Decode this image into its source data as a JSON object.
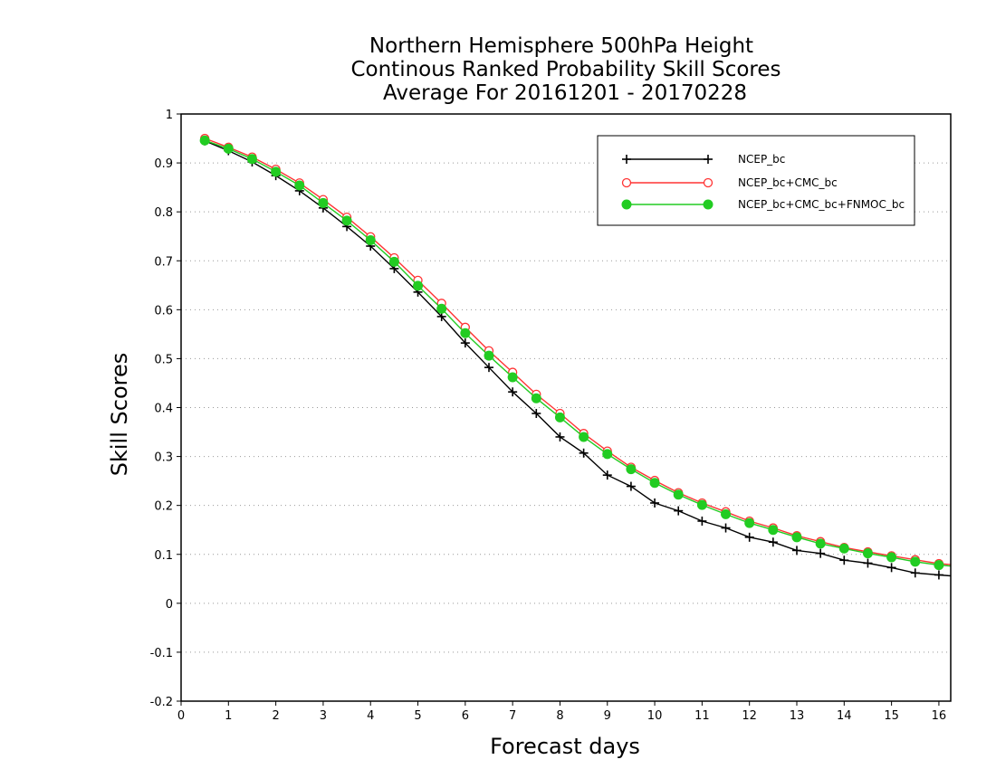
{
  "chart_data": {
    "type": "line",
    "title": [
      "Northern Hemisphere 500hPa Height",
      "Continous Ranked Probability Skill Scores",
      "Average For 20161201 - 20170228"
    ],
    "xlabel": "Forecast days",
    "ylabel": "Skill Scores",
    "xlim": [
      0,
      16.25
    ],
    "ylim": [
      -0.2,
      1.0
    ],
    "xticks": [
      "0",
      "1",
      "2",
      "3",
      "4",
      "5",
      "6",
      "7",
      "8",
      "9",
      "10",
      "11",
      "12",
      "13",
      "14",
      "15",
      "16"
    ],
    "yticks": [
      "-0.2",
      "-0.1",
      "0",
      "0.1",
      "0.2",
      "0.3",
      "0.4",
      "0.5",
      "0.6",
      "0.7",
      "0.8",
      "0.9",
      "1"
    ],
    "grid": "horizontal dotted",
    "legend_position": "top-right",
    "x": [
      0.5,
      1,
      1.5,
      2,
      2.5,
      3,
      3.5,
      4,
      4.5,
      5,
      5.5,
      6,
      6.5,
      7,
      7.5,
      8,
      8.5,
      9,
      9.5,
      10,
      10.5,
      11,
      11.5,
      12,
      12.5,
      13,
      13.5,
      14,
      14.5,
      15,
      15.5,
      16,
      16.25
    ],
    "series": [
      {
        "name": "NCEP_bc",
        "color": "#000000",
        "marker": "plus",
        "values": [
          0.945,
          0.925,
          0.902,
          0.874,
          0.843,
          0.808,
          0.77,
          0.73,
          0.684,
          0.636,
          0.586,
          0.532,
          0.482,
          0.432,
          0.388,
          0.34,
          0.307,
          0.262,
          0.239,
          0.205,
          0.189,
          0.168,
          0.154,
          0.135,
          0.125,
          0.108,
          0.102,
          0.088,
          0.082,
          0.073,
          0.062,
          0.058,
          0.056
        ]
      },
      {
        "name": "NCEP_bc+CMC_bc",
        "color": "#ff3333",
        "marker": "open-circle",
        "values": [
          0.95,
          0.932,
          0.912,
          0.887,
          0.859,
          0.825,
          0.789,
          0.749,
          0.706,
          0.66,
          0.613,
          0.564,
          0.516,
          0.472,
          0.427,
          0.388,
          0.347,
          0.311,
          0.278,
          0.251,
          0.226,
          0.205,
          0.187,
          0.168,
          0.154,
          0.138,
          0.126,
          0.114,
          0.105,
          0.097,
          0.089,
          0.081,
          0.079
        ]
      },
      {
        "name": "NCEP_bc+CMC_bc+FNMOC_bc",
        "color": "#22cc22",
        "marker": "filled-circle",
        "values": [
          0.946,
          0.929,
          0.908,
          0.882,
          0.854,
          0.818,
          0.782,
          0.742,
          0.698,
          0.649,
          0.602,
          0.552,
          0.506,
          0.462,
          0.419,
          0.38,
          0.34,
          0.305,
          0.274,
          0.246,
          0.222,
          0.201,
          0.182,
          0.164,
          0.15,
          0.135,
          0.122,
          0.112,
          0.102,
          0.094,
          0.085,
          0.078,
          0.076
        ]
      }
    ]
  }
}
